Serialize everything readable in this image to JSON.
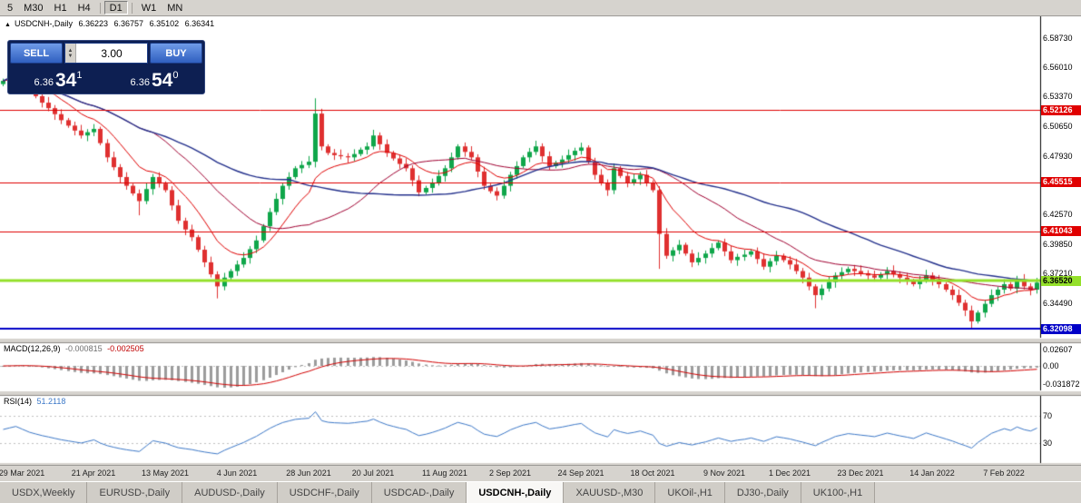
{
  "window": {
    "toolbar": {
      "timeframes": [
        {
          "label": "5",
          "active": false
        },
        {
          "label": "M30",
          "active": false
        },
        {
          "label": "H1",
          "active": false
        },
        {
          "label": "H4",
          "active": false
        },
        {
          "label": "D1",
          "active": true
        },
        {
          "label": "W1",
          "active": false
        },
        {
          "label": "MN",
          "active": false
        }
      ]
    },
    "chart_header": {
      "arrow": "▲",
      "symbol": "USDCNH-,Daily",
      "open": "6.36223",
      "high": "6.36757",
      "low": "6.35102",
      "close": "6.36341"
    },
    "trade_panel": {
      "sell_label": "SELL",
      "buy_label": "BUY",
      "volume": "3.00",
      "bid": {
        "prefix": "6.36",
        "pips": "34",
        "sup": "1"
      },
      "ask": {
        "prefix": "6.36",
        "pips": "54",
        "sup": "0"
      }
    },
    "price_axis": {
      "labels": [
        {
          "text": "6.58730",
          "price": 6.5873
        },
        {
          "text": "6.56010",
          "price": 6.5601
        },
        {
          "text": "6.53370",
          "price": 6.5337
        },
        {
          "text": "6.50650",
          "price": 6.5065
        },
        {
          "text": "6.47930",
          "price": 6.4793
        },
        {
          "text": "6.42570",
          "price": 6.4257
        },
        {
          "text": "6.39850",
          "price": 6.3985
        },
        {
          "text": "6.37210",
          "price": 6.3721
        },
        {
          "text": "6.34490",
          "price": 6.3449
        }
      ],
      "line_labels": [
        {
          "text": "6.52126",
          "price": 6.52126,
          "bg": "#e00000",
          "fg": "#ffffff"
        },
        {
          "text": "6.45515",
          "price": 6.45515,
          "bg": "#e00000",
          "fg": "#ffffff"
        },
        {
          "text": "6.41043",
          "price": 6.41043,
          "bg": "#e00000",
          "fg": "#ffffff"
        },
        {
          "text": "6.36520",
          "price": 6.3652,
          "bg": "#94e02a",
          "fg": "#000000"
        },
        {
          "text": "6.32098",
          "price": 6.32098,
          "bg": "#0000c8",
          "fg": "#ffffff"
        }
      ]
    },
    "indicators": {
      "macd": {
        "name": "MACD(12,26,9)",
        "value_main": "-0.000815",
        "value_signal": "-0.002505",
        "axis": [
          "0.02607",
          "0.00",
          "-0.031872"
        ]
      },
      "rsi": {
        "name": "RSI(14)",
        "value": "51.2118",
        "axis": [
          "70",
          "30"
        ]
      }
    },
    "tabs": [
      {
        "label": "USDX,Weekly",
        "active": false
      },
      {
        "label": "EURUSD-,Daily",
        "active": false
      },
      {
        "label": "AUDUSD-,Daily",
        "active": false
      },
      {
        "label": "USDCHF-,Daily",
        "active": false
      },
      {
        "label": "USDCAD-,Daily",
        "active": false
      },
      {
        "label": "USDCNH-,Daily",
        "active": true
      },
      {
        "label": "XAUUSD-,M30",
        "active": false
      },
      {
        "label": "UKOil-,H1",
        "active": false
      },
      {
        "label": "DJ30-,Daily",
        "active": false
      },
      {
        "label": "UK100-,H1",
        "active": false
      }
    ]
  },
  "chart_data": {
    "type": "candlestick",
    "symbol": "USDCNH-",
    "timeframe": "Daily",
    "ohlc": {
      "open": 6.36223,
      "high": 6.36757,
      "low": 6.35102,
      "close": 6.36341
    },
    "bid": 6.36341,
    "ask": 6.3654,
    "y_range": [
      6.313,
      6.597
    ],
    "bull_color": "#0fa64a",
    "bear_color": "#df3030",
    "first_open": 6.545,
    "closes": [
      6.548,
      6.553,
      6.558,
      6.55,
      6.54,
      6.534,
      6.528,
      6.523,
      6.5175,
      6.512,
      6.507,
      6.5025,
      6.498,
      6.501,
      6.504,
      6.491,
      6.478,
      6.469,
      6.46,
      6.452,
      6.445,
      6.438,
      6.449,
      6.46,
      6.454,
      6.448,
      6.434,
      6.42,
      6.412,
      6.405,
      6.3935,
      6.382,
      6.371,
      6.36,
      6.368,
      6.374,
      6.38,
      6.386,
      6.394,
      6.402,
      6.415,
      6.428,
      6.44,
      6.452,
      6.46,
      6.468,
      6.471,
      6.474,
      6.518,
      6.488,
      6.482,
      6.48,
      6.479,
      6.478,
      6.481,
      6.485,
      6.488,
      6.498,
      6.49,
      6.482,
      6.477,
      6.472,
      6.468,
      6.457,
      6.446,
      6.45,
      6.455,
      6.461,
      6.468,
      6.478,
      6.488,
      6.483,
      6.478,
      6.465,
      6.452,
      6.447,
      6.443,
      6.452,
      6.462,
      6.47,
      6.478,
      6.483,
      6.488,
      6.479,
      6.47,
      6.473,
      6.476,
      6.48,
      6.484,
      6.487,
      6.474,
      6.462,
      6.455,
      6.448,
      6.468,
      6.461,
      6.455,
      6.458,
      6.462,
      6.455,
      6.448,
      6.408,
      6.388,
      6.393,
      6.398,
      6.39,
      6.382,
      6.386,
      6.39,
      6.395,
      6.4,
      6.392,
      6.384,
      6.387,
      6.389,
      6.392,
      6.385,
      6.378,
      6.383,
      6.388,
      6.384,
      6.38,
      6.374,
      6.368,
      6.36,
      6.352,
      6.358,
      6.364,
      6.37,
      6.373,
      6.376,
      6.374,
      6.372,
      6.37,
      6.368,
      6.371,
      6.374,
      6.371,
      6.368,
      6.365,
      6.362,
      6.366,
      6.37,
      6.366,
      6.362,
      6.357,
      6.352,
      6.345,
      6.338,
      6.328,
      6.336,
      6.344,
      6.352,
      6.357,
      6.362,
      6.358,
      6.366,
      6.36,
      6.357,
      6.3634
    ],
    "wick_overrides": {
      "2": {
        "high": 6.574
      },
      "21": {
        "low": 6.425
      },
      "33": {
        "low": 6.349
      },
      "48": {
        "high": 6.532
      },
      "101": {
        "low": 6.376
      },
      "125": {
        "low": 6.34
      },
      "149": {
        "low": 6.3215
      }
    },
    "hlines": [
      {
        "price": 6.52126,
        "color": "#e00000",
        "width": 1
      },
      {
        "price": 6.45515,
        "color": "#e00000",
        "width": 1
      },
      {
        "price": 6.41043,
        "color": "#e00000",
        "width": 1
      },
      {
        "price": 6.3652,
        "color": "#94e02a",
        "width": 3
      },
      {
        "price": 6.32098,
        "color": "#0000c8",
        "width": 2
      }
    ],
    "ma": [
      {
        "type": "ema",
        "period": 10,
        "color": "#e00000",
        "width": 1
      },
      {
        "type": "sma",
        "period": 24,
        "color": "#a00030",
        "width": 1
      },
      {
        "type": "sma",
        "period": 45,
        "color": "#23308c",
        "width": 1.4
      }
    ],
    "macd": {
      "params": [
        12,
        26,
        9
      ],
      "hist_color": "#9c9c9c",
      "signal_color": "#d20000"
    },
    "rsi": {
      "period": 14,
      "color": "#3c78c8",
      "levels": [
        70,
        30
      ]
    },
    "dates": [
      {
        "label": "29 Mar 2021",
        "i": 3
      },
      {
        "label": "21 Apr 2021",
        "i": 14
      },
      {
        "label": "13 May 2021",
        "i": 25
      },
      {
        "label": "4 Jun 2021",
        "i": 36
      },
      {
        "label": "28 Jun 2021",
        "i": 47
      },
      {
        "label": "20 Jul 2021",
        "i": 57
      },
      {
        "label": "11 Aug 2021",
        "i": 68
      },
      {
        "label": "2 Sep 2021",
        "i": 78
      },
      {
        "label": "24 Sep 2021",
        "i": 89
      },
      {
        "label": "18 Oct 2021",
        "i": 100
      },
      {
        "label": "9 Nov 2021",
        "i": 111
      },
      {
        "label": "1 Dec 2021",
        "i": 121
      },
      {
        "label": "23 Dec 2021",
        "i": 132
      },
      {
        "label": "14 Jan 2022",
        "i": 143
      },
      {
        "label": "7 Feb 2022",
        "i": 154
      }
    ]
  }
}
